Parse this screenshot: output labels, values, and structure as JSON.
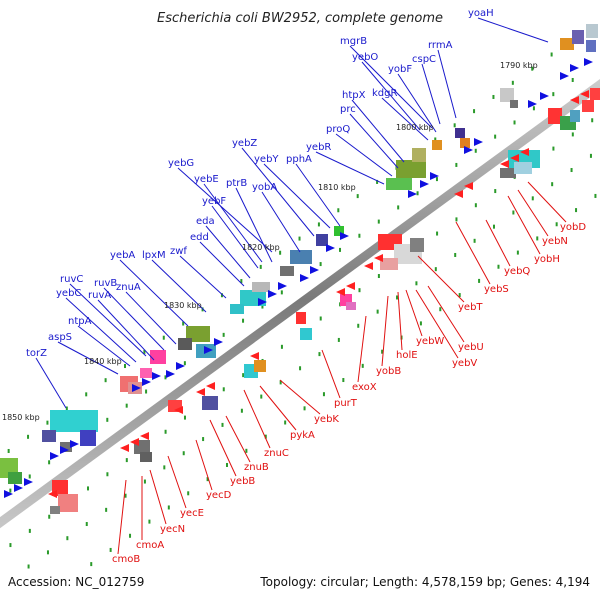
{
  "title": "Escherichia coli BW2952, complete genome",
  "footer": {
    "accession": "Accession: NC_012759",
    "topology": "Topology: circular; Length: 4,578,159 bp; Genes: 4,194"
  },
  "colors": {
    "upper_labels": "#1a1acc",
    "lower_labels": "#e01010",
    "backbone": "#777777",
    "tick": "#2a9a2a"
  },
  "kbp_markers": [
    "1790 kbp",
    "1800 kbp",
    "1810 kbp",
    "1820 kbp",
    "1830 kbp",
    "1840 kbp",
    "1850 kbp"
  ],
  "upper_genes": [
    "yoaH",
    "rrmA",
    "mgrB",
    "cspC",
    "yebO",
    "yobF",
    "kdgR",
    "htpX",
    "prc",
    "proQ",
    "yebR",
    "pphA",
    "yebY",
    "yebZ",
    "yebG",
    "yebE",
    "yobA",
    "ptrB",
    "yebF",
    "eda",
    "edd",
    "zwf",
    "lpxM",
    "yebA",
    "znuA",
    "ruvB",
    "ruvC",
    "yebC",
    "ruvA",
    "ntpA",
    "aspS",
    "torZ"
  ],
  "lower_genes": [
    "yobD",
    "yebN",
    "yobH",
    "yebQ",
    "yebS",
    "yebT",
    "yebU",
    "yebW",
    "yebV",
    "holE",
    "yobB",
    "exoX",
    "purT",
    "yebK",
    "pykA",
    "znuC",
    "znuB",
    "yebB",
    "yecD",
    "yecE",
    "yecN",
    "cmoA",
    "cmoB"
  ]
}
